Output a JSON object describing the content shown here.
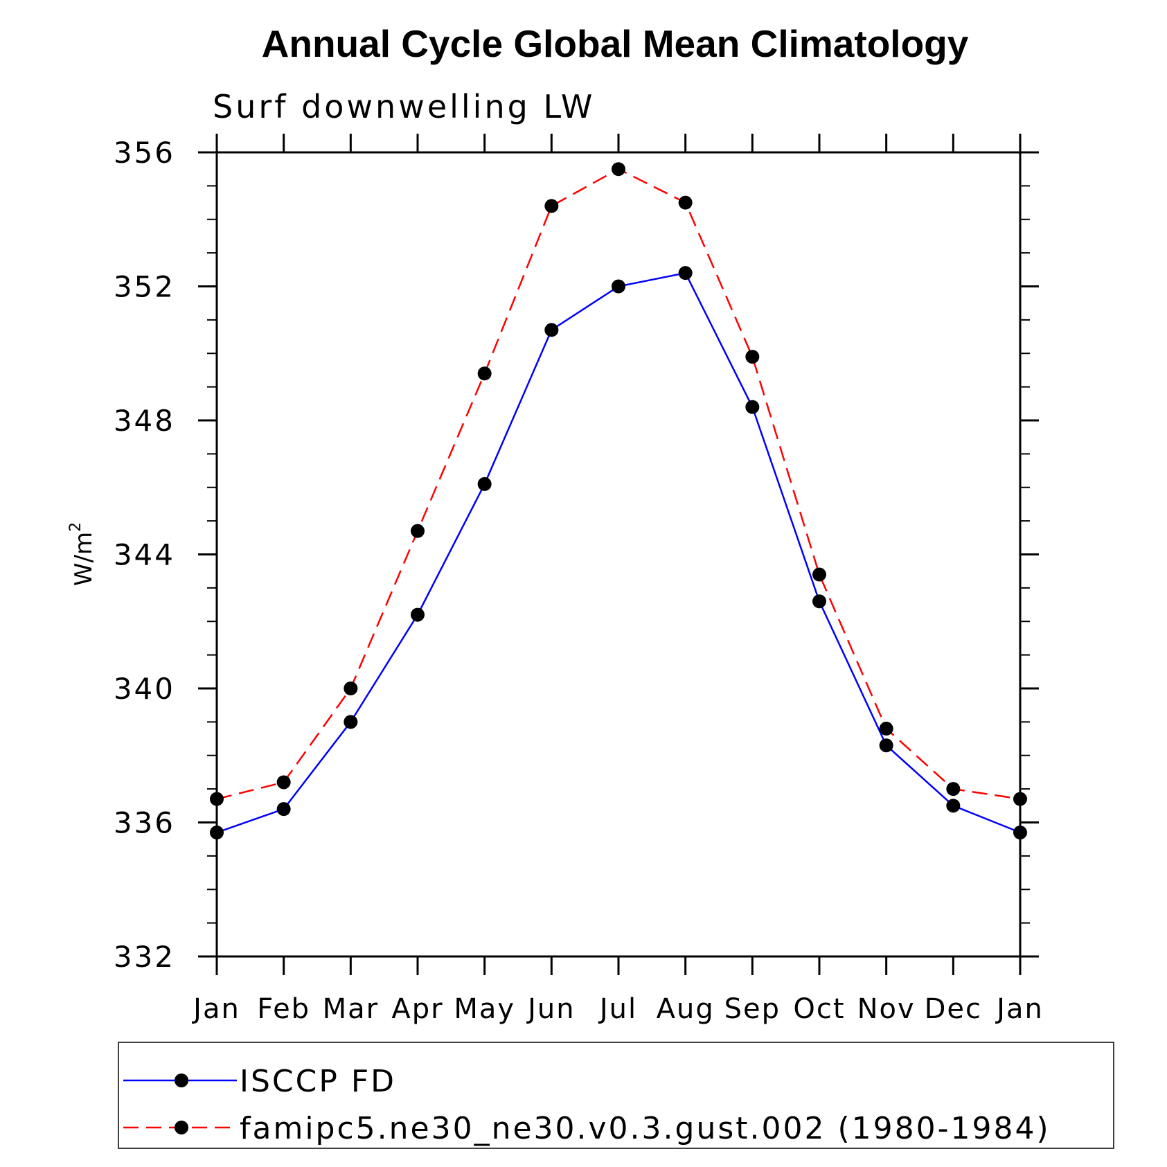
{
  "chart_data": {
    "type": "line",
    "title": "Annual Cycle Global Mean Climatology",
    "subtitle": "Surf downwelling LW",
    "ylabel": "W/m",
    "ylabel_sup": "2",
    "xlabel": "",
    "categories": [
      "Jan",
      "Feb",
      "Mar",
      "Apr",
      "May",
      "Jun",
      "Jul",
      "Aug",
      "Sep",
      "Oct",
      "Nov",
      "Dec",
      "Jan"
    ],
    "ylim": [
      332,
      356
    ],
    "yticks": [
      332,
      336,
      340,
      344,
      348,
      352,
      356
    ],
    "grid": false,
    "legend_position": "bottom",
    "series": [
      {
        "name": "ISCCP FD",
        "color": "#0000ff",
        "dash": "solid",
        "marker": "circle",
        "values": [
          335.7,
          336.4,
          339.0,
          342.2,
          346.1,
          350.7,
          352.0,
          352.4,
          348.4,
          342.6,
          338.3,
          336.5,
          335.7
        ]
      },
      {
        "name": "famipc5.ne30_ne30.v0.3.gust.002 (1980-1984)",
        "color": "#ff0000",
        "dash": "dashed",
        "marker": "circle",
        "values": [
          336.7,
          337.2,
          340.0,
          344.7,
          349.4,
          354.4,
          355.5,
          354.5,
          349.9,
          343.4,
          338.8,
          337.0,
          336.7
        ]
      }
    ]
  }
}
